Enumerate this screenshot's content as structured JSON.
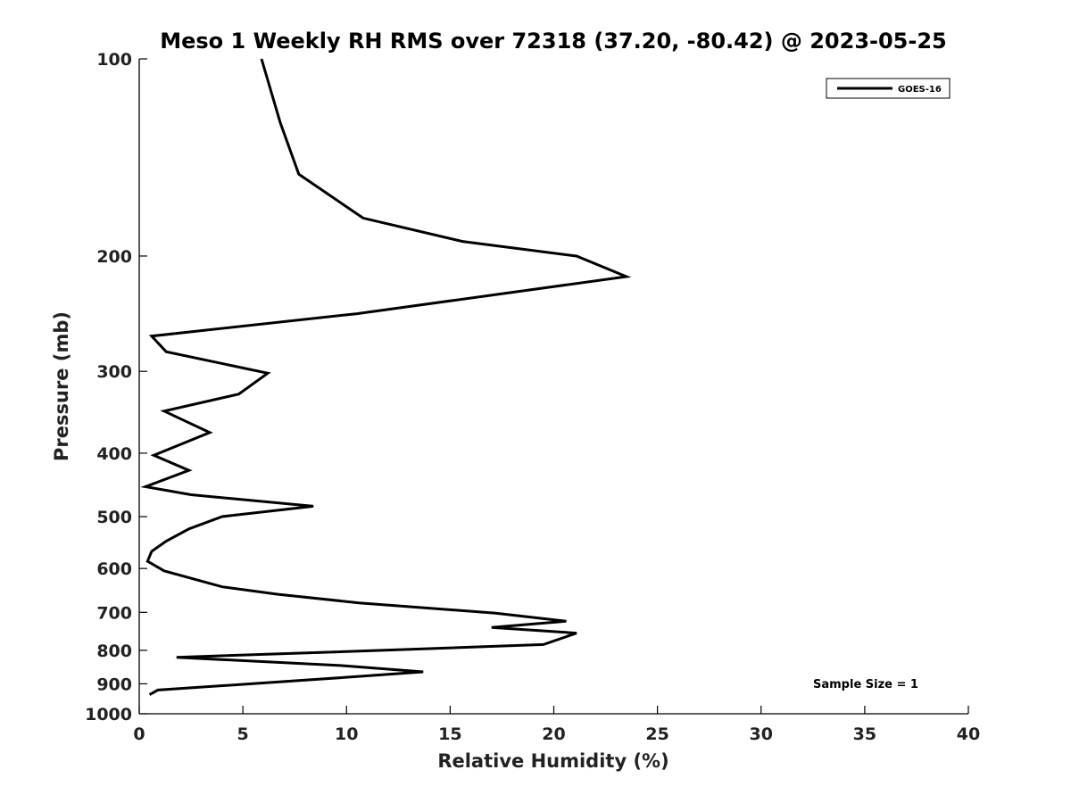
{
  "chart_data": {
    "type": "line",
    "title": "Meso 1 Weekly RH RMS over 72318 (37.20, -80.42) @ 2023-05-25",
    "xlabel": "Relative Humidity (%)",
    "ylabel": "Pressure (mb)",
    "xlim": [
      0,
      40
    ],
    "ylim": [
      100,
      1000
    ],
    "y_scale": "log",
    "y_inverted": true,
    "x_ticks": [
      0,
      5,
      10,
      15,
      20,
      25,
      30,
      35,
      40
    ],
    "y_ticks": [
      100,
      200,
      300,
      400,
      500,
      600,
      700,
      800,
      900,
      1000
    ],
    "grid": false,
    "legend_position": "top-right",
    "series": [
      {
        "name": "GOES-16",
        "color": "#000000",
        "points": [
          [
            5.9,
            100
          ],
          [
            6.8,
            125
          ],
          [
            7.7,
            150
          ],
          [
            10.8,
            175
          ],
          [
            15.6,
            190
          ],
          [
            21.1,
            200
          ],
          [
            23.5,
            215
          ],
          [
            10.5,
            245
          ],
          [
            0.6,
            265
          ],
          [
            1.3,
            280
          ],
          [
            6.2,
            302
          ],
          [
            4.8,
            325
          ],
          [
            1.2,
            345
          ],
          [
            3.4,
            372
          ],
          [
            0.7,
            403
          ],
          [
            2.4,
            425
          ],
          [
            0.3,
            450
          ],
          [
            2.5,
            463
          ],
          [
            8.4,
            482
          ],
          [
            4.0,
            500
          ],
          [
            2.4,
            522
          ],
          [
            1.3,
            545
          ],
          [
            0.6,
            565
          ],
          [
            0.4,
            585
          ],
          [
            1.2,
            605
          ],
          [
            4.0,
            640
          ],
          [
            6.7,
            657
          ],
          [
            10.6,
            677
          ],
          [
            17.2,
            702
          ],
          [
            20.6,
            722
          ],
          [
            17.0,
            738
          ],
          [
            21.1,
            753
          ],
          [
            19.5,
            784
          ],
          [
            11.7,
            800
          ],
          [
            1.8,
            820
          ],
          [
            9.7,
            844
          ],
          [
            13.7,
            863
          ],
          [
            9.9,
            880
          ],
          [
            0.9,
            920
          ],
          [
            0.5,
            935
          ]
        ]
      }
    ],
    "annotations": [
      "Sample Size = 1"
    ]
  }
}
